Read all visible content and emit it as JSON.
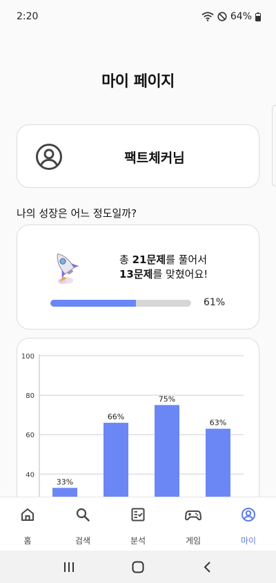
{
  "status_bar": {
    "time": "2:20",
    "battery": "64%"
  },
  "page": {
    "title": "마이 페이지"
  },
  "profile": {
    "avatar_icon": "user-circle-icon",
    "nickname": "팩트체커님"
  },
  "growth": {
    "section_title": "나의 성장은 어느 정도일까?",
    "icon": "rocket-icon",
    "line1_prefix": "총 ",
    "line1_bold": "21문제",
    "line1_suffix": "를 풀어서",
    "line2_bold": "13문제",
    "line2_suffix": "를 맞혔어요!",
    "progress_fraction": 0.61,
    "progress_label": "61%"
  },
  "chart_data": {
    "type": "bar",
    "categories": [
      "",
      "",
      "",
      ""
    ],
    "values": [
      33,
      66,
      75,
      63
    ],
    "data_labels": [
      "33%",
      "66%",
      "75%",
      "63%"
    ],
    "ylim": [
      0,
      100
    ],
    "yticks": [
      40,
      60,
      80,
      100
    ],
    "grid": true,
    "color": "#6b87f5"
  },
  "bottom_nav": {
    "items": [
      {
        "label": "홈",
        "icon": "home-icon"
      },
      {
        "label": "검색",
        "icon": "search-icon"
      },
      {
        "label": "분석",
        "icon": "analysis-icon"
      },
      {
        "label": "게임",
        "icon": "gamepad-icon"
      },
      {
        "label": "마이",
        "icon": "profile-icon"
      }
    ],
    "active_index": 4
  },
  "colors": {
    "accent": "#6b87f5",
    "active_nav": "#5b7be8"
  }
}
